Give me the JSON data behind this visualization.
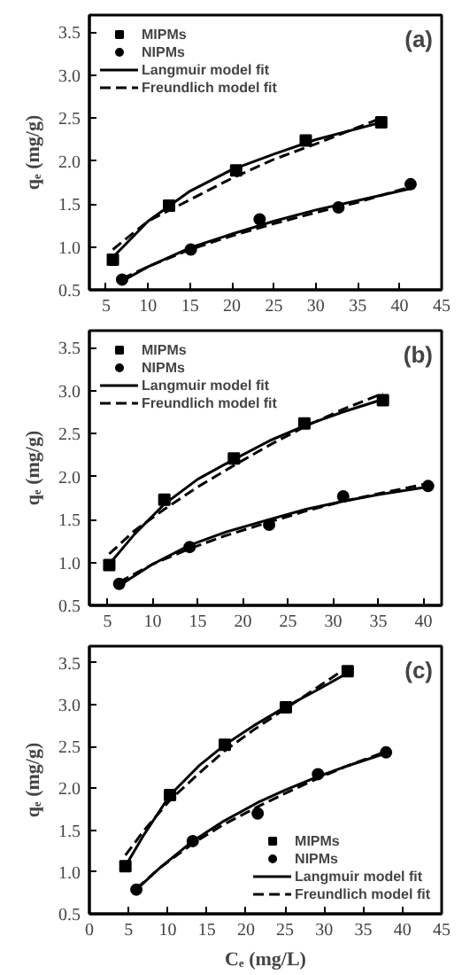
{
  "chart_data": [
    {
      "type": "scatter",
      "ylabel": "qₑ (mg/g)",
      "annotations": [
        "(a)"
      ],
      "xlim": [
        3,
        45
      ],
      "ylim": [
        0.5,
        3.7
      ],
      "xticks": [
        5,
        10,
        15,
        20,
        25,
        30,
        35,
        40,
        45
      ],
      "yticks": [
        0.5,
        {
          "value": 1,
          "label": "1.0"
        },
        1.5,
        {
          "value": 2,
          "label": "2.0"
        },
        2.5,
        {
          "value": 3,
          "label": "3.0"
        },
        3.5
      ],
      "grid": false,
      "legend": "top left",
      "series": [
        {
          "name": "MIPMs",
          "color": "#000000",
          "marker": "square",
          "x": [
            5.8,
            12.5,
            20.5,
            28.8,
            37.8
          ],
          "values": [
            0.85,
            1.48,
            1.89,
            2.24,
            2.45
          ]
        },
        {
          "name": "NIPMs",
          "color": "#000000",
          "marker": "circle",
          "x": [
            6.9,
            15.1,
            23.3,
            32.7,
            41.3
          ],
          "values": [
            0.62,
            0.97,
            1.32,
            1.46,
            1.73
          ]
        },
        {
          "name": "Langmuir model fit",
          "type": "line",
          "line_style": "solid",
          "color": "#000000",
          "x": [
            5.8,
            10,
            15,
            20,
            25,
            30,
            37.8
          ],
          "values": [
            0.88,
            1.3,
            1.65,
            1.9,
            2.08,
            2.25,
            2.45
          ]
        },
        {
          "name": "Freundlich model fit",
          "type": "line",
          "line_style": "dashed",
          "color": "#000000",
          "x": [
            5.8,
            10,
            15,
            20,
            25,
            30,
            37.8
          ],
          "values": [
            0.97,
            1.3,
            1.55,
            1.8,
            2.02,
            2.2,
            2.5
          ]
        },
        {
          "type": "line",
          "line_style": "solid",
          "color": "#000000",
          "x": [
            6.9,
            10,
            15,
            20,
            25,
            30,
            35,
            41.3
          ],
          "values": [
            0.6,
            0.77,
            0.99,
            1.15,
            1.3,
            1.43,
            1.54,
            1.68
          ]
        },
        {
          "type": "line",
          "line_style": "dashed",
          "color": "#000000",
          "x": [
            6.9,
            10,
            15,
            20,
            25,
            30,
            35,
            41.3
          ],
          "values": [
            0.63,
            0.77,
            0.97,
            1.13,
            1.27,
            1.4,
            1.52,
            1.7
          ]
        }
      ]
    },
    {
      "type": "scatter",
      "ylabel": "qₑ (mg/g)",
      "annotations": [
        "(b)"
      ],
      "xlim": [
        3,
        42
      ],
      "ylim": [
        0.5,
        3.7
      ],
      "xticks": [
        5,
        10,
        15,
        20,
        25,
        30,
        35,
        40
      ],
      "yticks": [
        0.5,
        {
          "value": 1,
          "label": "1.0"
        },
        1.5,
        {
          "value": 2,
          "label": "2.0"
        },
        2.5,
        {
          "value": 3,
          "label": "3.0"
        },
        3.5
      ],
      "grid": false,
      "legend": "top left",
      "series": [
        {
          "name": "MIPMs",
          "color": "#000000",
          "marker": "square",
          "x": [
            5.2,
            11.3,
            19.0,
            26.8,
            35.5
          ],
          "values": [
            0.97,
            1.73,
            2.21,
            2.62,
            2.89
          ]
        },
        {
          "name": "NIPMs",
          "color": "#000000",
          "marker": "circle",
          "x": [
            6.3,
            14.1,
            22.9,
            31.1,
            40.5
          ],
          "values": [
            0.75,
            1.18,
            1.44,
            1.77,
            1.89
          ]
        },
        {
          "name": "Langmuir model fit",
          "type": "line",
          "line_style": "solid",
          "color": "#000000",
          "x": [
            5.2,
            8,
            11.3,
            15,
            19,
            23,
            27,
            31,
            35.5
          ],
          "values": [
            0.98,
            1.33,
            1.68,
            1.97,
            2.2,
            2.42,
            2.6,
            2.75,
            2.9
          ]
        },
        {
          "name": "Freundlich model fit",
          "type": "line",
          "line_style": "dashed",
          "color": "#000000",
          "x": [
            5.2,
            8,
            11.3,
            15,
            19,
            23,
            27,
            31,
            35.5
          ],
          "values": [
            1.1,
            1.37,
            1.62,
            1.88,
            2.13,
            2.37,
            2.59,
            2.78,
            2.97
          ]
        },
        {
          "type": "line",
          "line_style": "solid",
          "color": "#000000",
          "x": [
            6.3,
            10,
            14.1,
            18,
            22.9,
            27,
            31,
            35,
            40.5
          ],
          "values": [
            0.73,
            0.98,
            1.2,
            1.35,
            1.5,
            1.62,
            1.71,
            1.79,
            1.88
          ]
        },
        {
          "type": "line",
          "line_style": "dashed",
          "color": "#000000",
          "x": [
            6.3,
            10,
            14.1,
            18,
            22.9,
            27,
            31,
            35,
            40.5
          ],
          "values": [
            0.77,
            0.98,
            1.16,
            1.31,
            1.47,
            1.6,
            1.71,
            1.8,
            1.92
          ]
        }
      ]
    },
    {
      "type": "scatter",
      "xlabel": "Cₑ (mg/L)",
      "ylabel": "qₑ (mg/g)",
      "annotations": [
        "(c)"
      ],
      "xlim": [
        0,
        45
      ],
      "ylim": [
        0.5,
        3.7
      ],
      "xticks": [
        0,
        5,
        10,
        15,
        20,
        25,
        30,
        35,
        40,
        45
      ],
      "yticks": [
        0.5,
        {
          "value": 1,
          "label": "1.0"
        },
        1.5,
        {
          "value": 2,
          "label": "2.0"
        },
        2.5,
        {
          "value": 3,
          "label": "3.0"
        },
        3.5
      ],
      "grid": false,
      "legend": "bottom right",
      "series": [
        {
          "name": "MIPMs",
          "color": "#000000",
          "marker": "square",
          "x": [
            4.6,
            10.3,
            17.3,
            25.1,
            33.0
          ],
          "values": [
            1.07,
            1.92,
            2.52,
            2.97,
            3.4
          ]
        },
        {
          "name": "NIPMs",
          "color": "#000000",
          "marker": "circle",
          "x": [
            6.0,
            13.2,
            21.5,
            29.2,
            37.9
          ],
          "values": [
            0.79,
            1.37,
            1.7,
            2.17,
            2.43
          ]
        },
        {
          "name": "Langmuir model fit",
          "type": "line",
          "line_style": "solid",
          "color": "#000000",
          "x": [
            4.6,
            7,
            10.3,
            14,
            17.3,
            21,
            25,
            29,
            33
          ],
          "values": [
            1.07,
            1.45,
            1.92,
            2.27,
            2.52,
            2.75,
            2.97,
            3.17,
            3.38
          ]
        },
        {
          "name": "Freundlich model fit",
          "type": "line",
          "line_style": "dashed",
          "color": "#000000",
          "x": [
            4.6,
            7,
            10.3,
            14,
            17.3,
            21,
            25,
            29,
            33
          ],
          "values": [
            1.2,
            1.5,
            1.86,
            2.18,
            2.45,
            2.7,
            2.95,
            3.2,
            3.45
          ]
        },
        {
          "type": "line",
          "line_style": "solid",
          "color": "#000000",
          "x": [
            6,
            9,
            13.2,
            17,
            21.5,
            25,
            29.2,
            33,
            37.9
          ],
          "values": [
            0.79,
            1.05,
            1.37,
            1.6,
            1.83,
            1.98,
            2.14,
            2.27,
            2.42
          ]
        },
        {
          "type": "line",
          "line_style": "dashed",
          "color": "#000000",
          "x": [
            6,
            9,
            13.2,
            17,
            21.5,
            25,
            29.2,
            33,
            37.9
          ],
          "values": [
            0.8,
            1.05,
            1.34,
            1.56,
            1.78,
            1.94,
            2.12,
            2.27,
            2.44
          ]
        }
      ]
    }
  ]
}
